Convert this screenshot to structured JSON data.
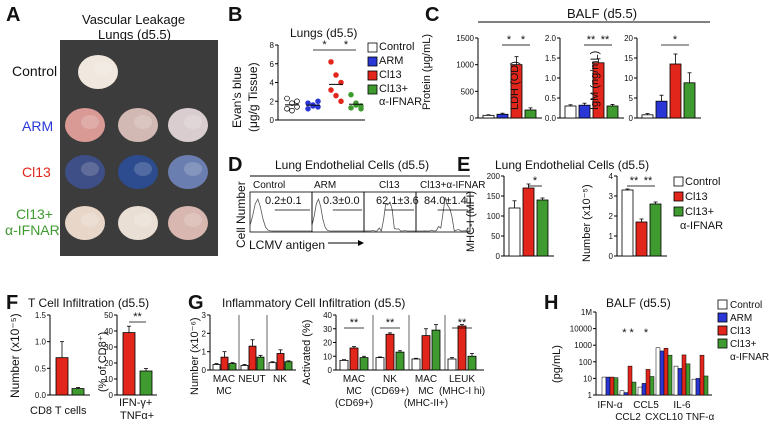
{
  "colors": {
    "control": "#ffffff",
    "arm": "#2a37d6",
    "cl13": "#e2261b",
    "cl13ifnar": "#3f9a2f",
    "axis": "#000000"
  },
  "A": {
    "letter": "A",
    "title_line1": "Vascular Leakage",
    "title_line2": "Lungs (d5.5)",
    "rows": [
      {
        "label": "Control",
        "color": "#111111"
      },
      {
        "label": "ARM",
        "color": "#2a37d6"
      },
      {
        "label": "Cl13",
        "color": "#e2261b"
      },
      {
        "label": "Cl13+",
        "label2": "α-IFNAR",
        "color": "#3f9a2f"
      }
    ],
    "lung_tints": [
      [
        "#f0e7df"
      ],
      [
        "#d99a95",
        "#d2b9b3",
        "#d9cdd0"
      ],
      [
        "#3e4e86",
        "#2d4c8f",
        "#6a7fb0"
      ],
      [
        "#e8d7c9",
        "#eadfd4",
        "#d8b7b0"
      ]
    ]
  },
  "B": {
    "letter": "B",
    "title": "Lungs (d5.5)",
    "ylabel1": "Evan's blue",
    "ylabel2": "(μg/g Tissue)",
    "yticks": [
      "0",
      "2",
      "4",
      "6",
      "8"
    ],
    "sig": [
      "*",
      "*"
    ],
    "legend": [
      {
        "label": "Control",
        "color": "#ffffff"
      },
      {
        "label": "ARM",
        "color": "#2a37d6"
      },
      {
        "label": "Cl13",
        "color": "#e2261b"
      },
      {
        "label": "Cl13+",
        "label2": "α-IFNAR",
        "color": "#3f9a2f"
      }
    ],
    "chart_data": {
      "type": "scatter",
      "ylim": [
        0,
        8
      ],
      "series": [
        {
          "name": "Control",
          "values": [
            2.3,
            1.8,
            1.4,
            1.2,
            1.0,
            2.0
          ]
        },
        {
          "name": "ARM",
          "values": [
            1.8,
            1.6,
            1.4,
            1.2,
            1.5,
            2.0
          ]
        },
        {
          "name": "Cl13",
          "values": [
            6.2,
            4.8,
            4.0,
            3.2,
            2.6,
            2.0
          ]
        },
        {
          "name": "Cl13+ α-IFNAR",
          "values": [
            2.7,
            1.8,
            1.5,
            1.3,
            1.6,
            1.2
          ]
        }
      ]
    }
  },
  "C": {
    "letter": "C",
    "header": "BALF (d5.5)",
    "panels": [
      {
        "ylabel": "Protein (μg/mL)",
        "yticks": [
          "0",
          "500",
          "1000",
          "1500"
        ],
        "ylim": [
          0,
          1500
        ],
        "values": [
          50,
          70,
          1000,
          150
        ],
        "errors": [
          10,
          20,
          150,
          40
        ],
        "sig": [
          "*",
          "*"
        ]
      },
      {
        "ylabel": "LDH (OD)",
        "yticks": [
          "0.0",
          "0.5",
          "1.0",
          "1.5",
          "2.0"
        ],
        "ylim": [
          0,
          2
        ],
        "values": [
          0.3,
          0.32,
          1.38,
          0.3
        ],
        "errors": [
          0.03,
          0.05,
          0.1,
          0.04
        ],
        "sig": [
          "**",
          "**"
        ]
      },
      {
        "ylabel": "IgM (ng/mL)",
        "yticks": [
          "0",
          "5",
          "10",
          "15",
          "20"
        ],
        "ylim": [
          0,
          20
        ],
        "values": [
          0.8,
          4.2,
          13.5,
          8.8
        ],
        "errors": [
          0.3,
          1.5,
          2.5,
          2.5
        ],
        "sig": [
          "*"
        ]
      }
    ]
  },
  "D": {
    "letter": "D",
    "title": "Lung Endothelial Cells (d5.5)",
    "ylabel": "Cell Number",
    "xlabel": "LCMV antigen",
    "columns": [
      {
        "label": "Control",
        "value": "0.2±0.1"
      },
      {
        "label": "ARM",
        "value": "0.3±0.0"
      },
      {
        "label": "Cl13",
        "value": "62.1±3.6"
      },
      {
        "label": "Cl13+α-IFNAR",
        "value": "84.0±1.4"
      }
    ]
  },
  "E": {
    "letter": "E",
    "title": "Lung Endothelial Cells (d5.5)",
    "panels": [
      {
        "ylabel": "MHC-I (MFI)",
        "yticks": [
          "0",
          "50",
          "100",
          "150",
          "200"
        ],
        "ylim": [
          0,
          200
        ],
        "values": [
          120,
          170,
          140
        ],
        "errors": [
          18,
          10,
          5
        ],
        "sig": [
          "*"
        ]
      },
      {
        "ylabel": "Number (x10⁻⁵)",
        "yticks": [
          "0",
          "1",
          "2",
          "3",
          "4"
        ],
        "ylim": [
          0,
          4
        ],
        "values": [
          3.3,
          1.7,
          2.6
        ],
        "errors": [
          0.05,
          0.15,
          0.1
        ],
        "sig": [
          "**",
          "**"
        ]
      }
    ],
    "legend": [
      {
        "label": "Control",
        "color": "#ffffff"
      },
      {
        "label": "Cl13",
        "color": "#e2261b"
      },
      {
        "label": "Cl13+",
        "label2": "α-IFNAR",
        "color": "#3f9a2f"
      }
    ]
  },
  "F": {
    "letter": "F",
    "title": "T Cell Infiltration (d5.5)",
    "panel1": {
      "ylabel": "Number (x10⁻⁵)",
      "yticks": [
        "0.0",
        "0.5",
        "1.0",
        "1.5"
      ],
      "ylim": [
        0,
        1.5
      ],
      "values": [
        0.7,
        0.12
      ],
      "errors": [
        0.3,
        0.02
      ],
      "xlabel": "CD8 T cells"
    },
    "panel2": {
      "ylabel": "(% of CD8⁺)",
      "yticks": [
        "0",
        "10",
        "20",
        "30",
        "40",
        "50"
      ],
      "ylim": [
        0,
        50
      ],
      "values": [
        39,
        15
      ],
      "errors": [
        4,
        1.5
      ],
      "sig": [
        "**"
      ],
      "xlabel1": "IFN-γ+",
      "xlabel2": "TNFα+"
    }
  },
  "G": {
    "letter": "G",
    "title": "Inflammatory Cell Infiltration (d5.5)",
    "panel1": {
      "ylabel": "Number (x10⁻⁶)",
      "yticks": [
        "0",
        "1",
        "2",
        "3"
      ],
      "ylim": [
        0,
        3
      ],
      "groups": [
        {
          "label": "MAC",
          "label2": "MC",
          "values": [
            0.3,
            0.7,
            0.35
          ],
          "errors": [
            0.05,
            0.3,
            0.05
          ]
        },
        {
          "label": "NEUT",
          "values": [
            0.25,
            1.3,
            0.7
          ],
          "errors": [
            0.05,
            0.35,
            0.1
          ]
        },
        {
          "label": "NK",
          "values": [
            0.4,
            0.9,
            0.45
          ],
          "errors": [
            0.05,
            0.2,
            0.05
          ]
        }
      ]
    },
    "panel2": {
      "ylabel": "Activated (%)",
      "yticks": [
        "0",
        "10",
        "20",
        "30",
        "40"
      ],
      "ylim": [
        0,
        40
      ],
      "groups": [
        {
          "label": "MAC",
          "label2": "MC",
          "label3": "(CD69+)",
          "values": [
            7,
            16,
            9
          ],
          "errors": [
            0.5,
            1,
            1
          ],
          "sig": "**"
        },
        {
          "label": "NK",
          "label2": "(CD69+)",
          "values": [
            9,
            26,
            13
          ],
          "errors": [
            0.5,
            1,
            1
          ],
          "sig": "**"
        },
        {
          "label": "MAC",
          "label2": "MC",
          "label3": "(MHC-II+)",
          "values": [
            8,
            25,
            29
          ],
          "errors": [
            0.5,
            5,
            4
          ],
          "sig": ""
        },
        {
          "label": "LEUK",
          "label2": "(MHC-I hi)",
          "values": [
            8,
            32,
            10
          ],
          "errors": [
            1,
            1,
            2
          ],
          "sig": "**"
        }
      ]
    }
  },
  "H": {
    "letter": "H",
    "title": "BALF (d5.5)",
    "ylabel": "(pg/mL)",
    "yticks": [
      "1",
      "10",
      "100",
      "1000",
      "10000",
      "1M"
    ],
    "ytick_labels": [
      "1",
      "10",
      "100",
      "1000",
      "10000",
      "1M"
    ],
    "chart_data": {
      "type": "bar",
      "log": true,
      "categories": [
        "IFN-α",
        "CCL2",
        "CCL5",
        "CXCL10",
        "IL-6",
        "TNF-α"
      ],
      "series": [
        {
          "name": "Control",
          "values": [
            12,
            1.8,
            3.0,
            700,
            55,
            9
          ]
        },
        {
          "name": "ARM",
          "values": [
            12,
            1.4,
            5,
            450,
            40,
            10
          ]
        },
        {
          "name": "Cl13",
          "values": [
            12,
            55,
            35,
            650,
            260,
            250
          ]
        },
        {
          "name": "Cl13+ α-IFNAR",
          "values": [
            11,
            6,
            13,
            250,
            75,
            14
          ]
        }
      ],
      "sig": [
        "",
        "* *",
        "*",
        "",
        "",
        ""
      ]
    },
    "legend": [
      {
        "label": "Control",
        "color": "#ffffff"
      },
      {
        "label": "ARM",
        "color": "#2a37d6"
      },
      {
        "label": "Cl13",
        "color": "#e2261b"
      },
      {
        "label": "Cl13+",
        "label2": "α-IFNAR",
        "color": "#3f9a2f"
      }
    ]
  }
}
